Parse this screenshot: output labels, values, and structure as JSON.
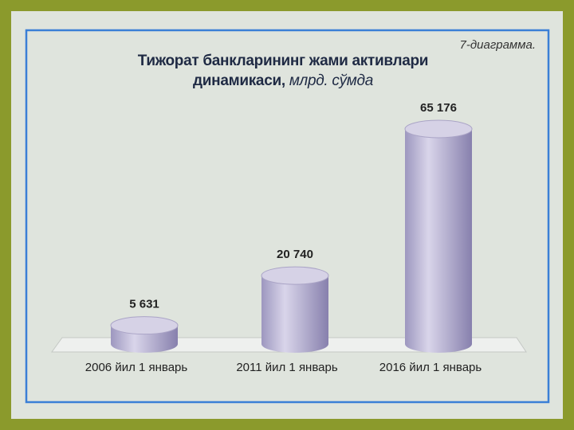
{
  "chart_data": {
    "type": "cylinder-bar",
    "title": "Тижорат банкларининг жами активлари динамикаси,",
    "unit": "млрд. сўмда",
    "label": "7-диаграмма.",
    "categories": [
      "2006 йил 1 январь",
      "2011 йил 1 январь",
      "2016 йил 1 январь"
    ],
    "values": [
      5631,
      20740,
      65176
    ],
    "value_labels": [
      "5 631",
      "20 740",
      "65 176"
    ],
    "color": "#b6b0d0"
  }
}
